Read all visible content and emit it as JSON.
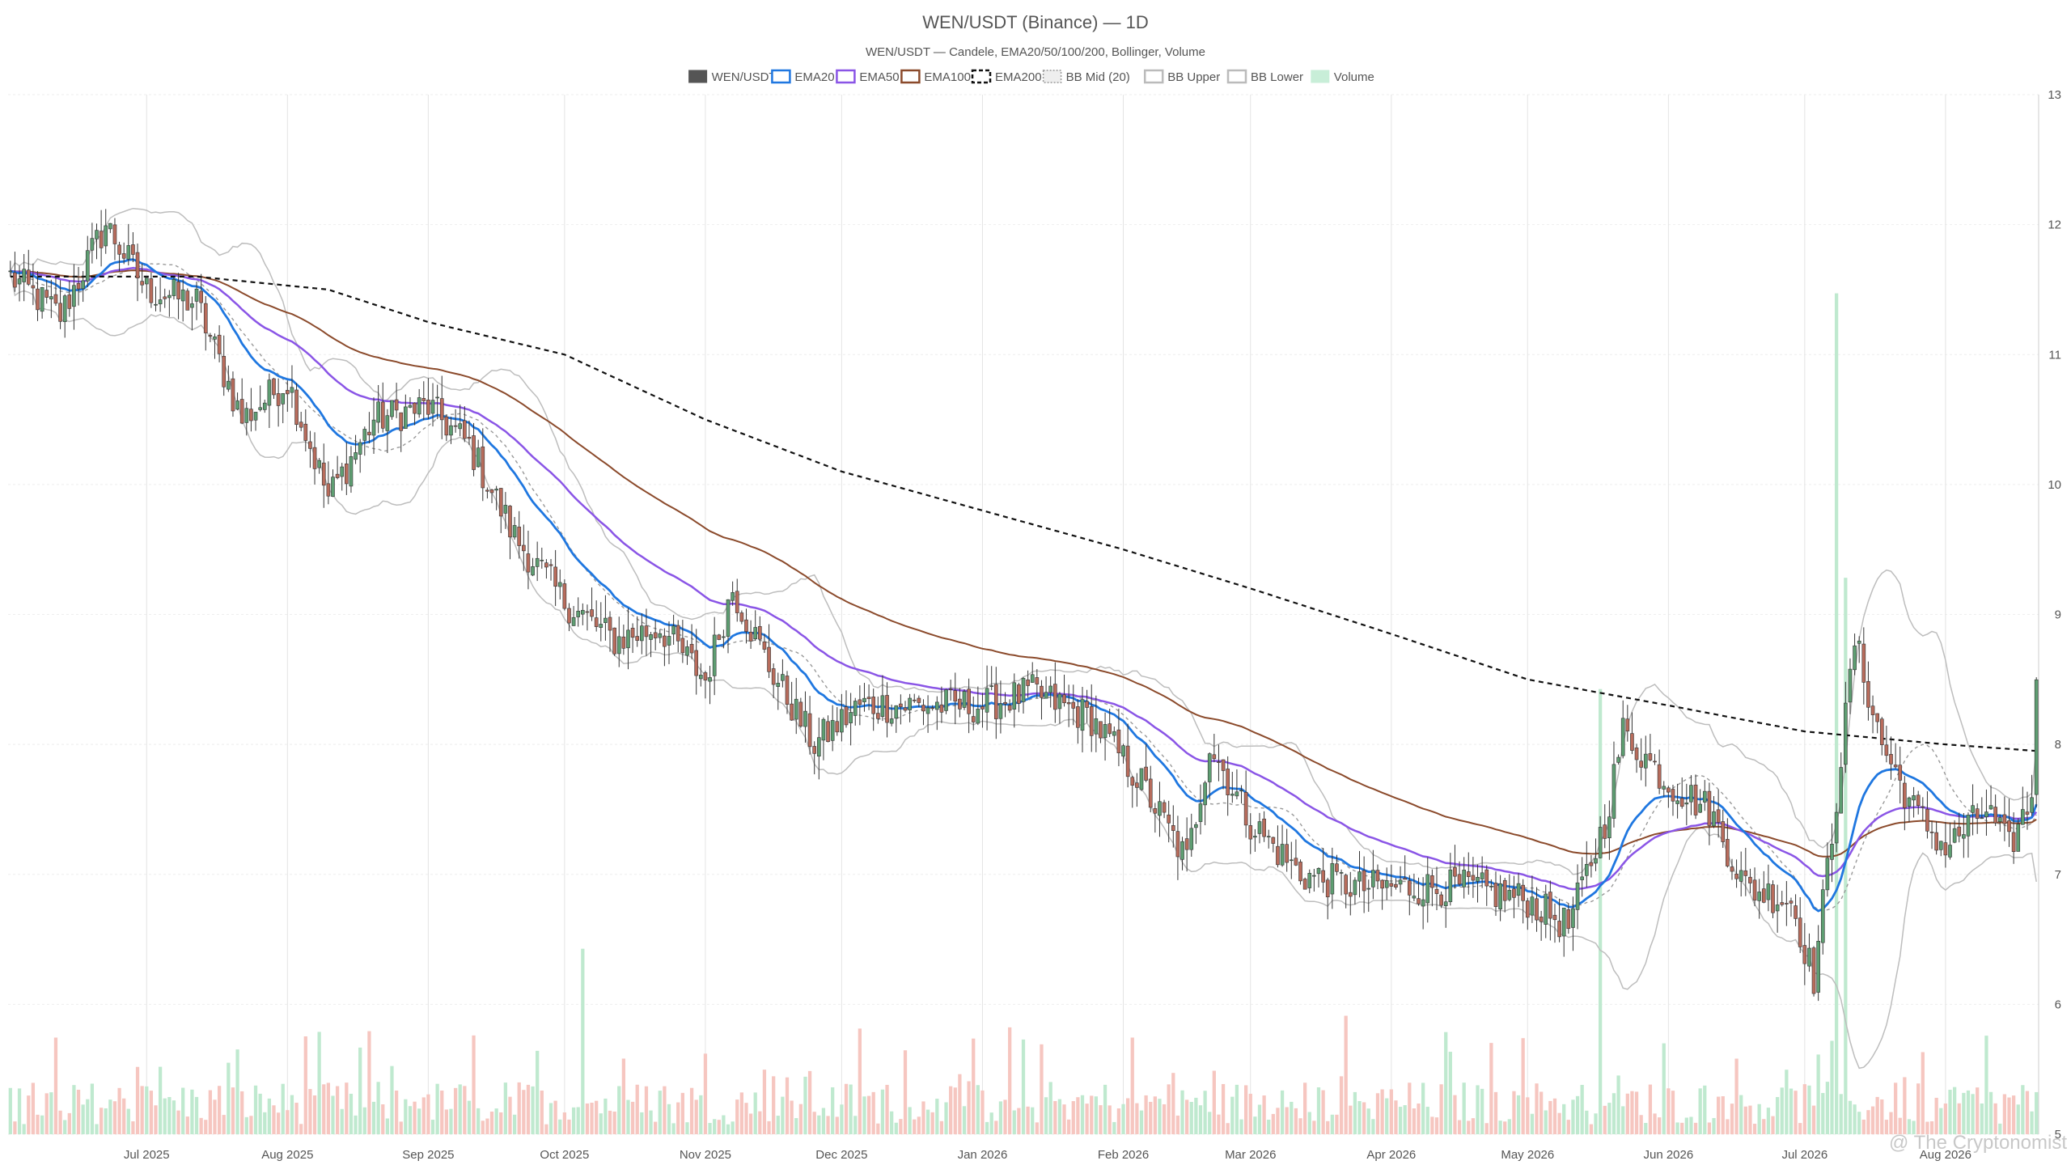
{
  "chart_data": {
    "type": "candlestick",
    "title": "WEN/USDT (Binance) — 1D",
    "subtitle": "WEN/USDT — Candele, EMA20/50/100/200, Bollinger, Volume",
    "watermark": "@ The Cryptonomist",
    "legend": [
      {
        "label": "WEN/USDT",
        "color": "#555555",
        "style": "solid-fill"
      },
      {
        "label": "EMA20",
        "color": "#1f77e0",
        "style": "line"
      },
      {
        "label": "EMA50",
        "color": "#8a55e6",
        "style": "line"
      },
      {
        "label": "EMA100",
        "color": "#8b4a2b",
        "style": "line"
      },
      {
        "label": "EMA200",
        "color": "#111111",
        "style": "dashed"
      },
      {
        "label": "BB Mid (20)",
        "color": "#999999",
        "style": "dotted"
      },
      {
        "label": "BB Upper",
        "color": "#bbbbbb",
        "style": "line"
      },
      {
        "label": "BB Lower",
        "color": "#bbbbbb",
        "style": "line"
      },
      {
        "label": "Volume",
        "color": "#c8eed8",
        "style": "solid-fill"
      }
    ],
    "x_labels": [
      "Jul 2025",
      "Aug 2025",
      "Sep 2025",
      "Oct 2025",
      "Nov 2025",
      "Dec 2025",
      "Jan 2026",
      "Feb 2026",
      "Mar 2026",
      "Apr 2026",
      "May 2026",
      "Jun 2026",
      "Jul 2026",
      "Aug 2026"
    ],
    "x_range": [
      "2025-06-01",
      "2026-08-21"
    ],
    "y_ticks": [
      5,
      6,
      7,
      8,
      9,
      10,
      11,
      12,
      13
    ],
    "ylim": [
      5,
      13
    ],
    "y_axis_side": "right",
    "grid": true,
    "legend_position": "top-center",
    "colors": {
      "up": "#5e9e72",
      "down": "#b86c5c",
      "vol_up": "#bfe9cf",
      "vol_down": "#f6c6c0"
    },
    "close_anchors": [
      {
        "date": "2025-06-01",
        "value": 11.6
      },
      {
        "date": "2025-06-12",
        "value": 11.3
      },
      {
        "date": "2025-06-22",
        "value": 12.0
      },
      {
        "date": "2025-07-01",
        "value": 11.5
      },
      {
        "date": "2025-07-12",
        "value": 11.4
      },
      {
        "date": "2025-07-22",
        "value": 10.5
      },
      {
        "date": "2025-08-01",
        "value": 10.8
      },
      {
        "date": "2025-08-10",
        "value": 9.9
      },
      {
        "date": "2025-08-20",
        "value": 10.5
      },
      {
        "date": "2025-09-01",
        "value": 10.6
      },
      {
        "date": "2025-09-10",
        "value": 10.3
      },
      {
        "date": "2025-09-20",
        "value": 9.6
      },
      {
        "date": "2025-10-01",
        "value": 9.1
      },
      {
        "date": "2025-10-12",
        "value": 8.8
      },
      {
        "date": "2025-10-22",
        "value": 8.9
      },
      {
        "date": "2025-11-01",
        "value": 8.5
      },
      {
        "date": "2025-11-07",
        "value": 9.2
      },
      {
        "date": "2025-11-15",
        "value": 8.6
      },
      {
        "date": "2025-11-25",
        "value": 8.0
      },
      {
        "date": "2025-12-05",
        "value": 8.3
      },
      {
        "date": "2025-12-15",
        "value": 8.3
      },
      {
        "date": "2026-01-01",
        "value": 8.3
      },
      {
        "date": "2026-01-12",
        "value": 8.4
      },
      {
        "date": "2026-01-25",
        "value": 8.2
      },
      {
        "date": "2026-02-05",
        "value": 7.7
      },
      {
        "date": "2026-02-15",
        "value": 7.1
      },
      {
        "date": "2026-02-20",
        "value": 8.0
      },
      {
        "date": "2026-03-01",
        "value": 7.4
      },
      {
        "date": "2026-03-12",
        "value": 7.0
      },
      {
        "date": "2026-03-25",
        "value": 6.9
      },
      {
        "date": "2026-04-05",
        "value": 6.9
      },
      {
        "date": "2026-04-18",
        "value": 6.9
      },
      {
        "date": "2026-05-01",
        "value": 6.8
      },
      {
        "date": "2026-05-10",
        "value": 6.6
      },
      {
        "date": "2026-05-18",
        "value": 7.4
      },
      {
        "date": "2026-05-22",
        "value": 8.1
      },
      {
        "date": "2026-06-01",
        "value": 7.7
      },
      {
        "date": "2026-06-10",
        "value": 7.5
      },
      {
        "date": "2026-06-18",
        "value": 6.9
      },
      {
        "date": "2026-06-28",
        "value": 6.8
      },
      {
        "date": "2026-07-03",
        "value": 6.2
      },
      {
        "date": "2026-07-08",
        "value": 7.6
      },
      {
        "date": "2026-07-12",
        "value": 8.8
      },
      {
        "date": "2026-07-18",
        "value": 8.0
      },
      {
        "date": "2026-07-25",
        "value": 7.5
      },
      {
        "date": "2026-08-01",
        "value": 7.2
      },
      {
        "date": "2026-08-10",
        "value": 7.5
      },
      {
        "date": "2026-08-15",
        "value": 7.2
      },
      {
        "date": "2026-08-20",
        "value": 7.6
      },
      {
        "date": "2026-08-21",
        "value": 8.6
      }
    ],
    "ema200_anchors": [
      {
        "date": "2025-06-01",
        "value": 11.6
      },
      {
        "date": "2025-07-12",
        "value": 11.6
      },
      {
        "date": "2025-08-10",
        "value": 11.5
      },
      {
        "date": "2025-09-01",
        "value": 11.25
      },
      {
        "date": "2025-10-01",
        "value": 11.0
      },
      {
        "date": "2025-11-01",
        "value": 10.5
      },
      {
        "date": "2025-12-01",
        "value": 10.1
      },
      {
        "date": "2026-01-01",
        "value": 9.8
      },
      {
        "date": "2026-02-01",
        "value": 9.5
      },
      {
        "date": "2026-03-01",
        "value": 9.2
      },
      {
        "date": "2026-04-01",
        "value": 8.85
      },
      {
        "date": "2026-05-01",
        "value": 8.5
      },
      {
        "date": "2026-06-01",
        "value": 8.3
      },
      {
        "date": "2026-07-01",
        "value": 8.1
      },
      {
        "date": "2026-08-01",
        "value": 8.0
      },
      {
        "date": "2026-08-21",
        "value": 7.95
      }
    ],
    "volume_spikes": [
      {
        "date": "2025-10-05",
        "value": 1.5
      },
      {
        "date": "2026-05-17",
        "value": 3.6
      },
      {
        "date": "2026-07-08",
        "value": 6.8
      },
      {
        "date": "2026-07-10",
        "value": 4.5
      }
    ]
  }
}
